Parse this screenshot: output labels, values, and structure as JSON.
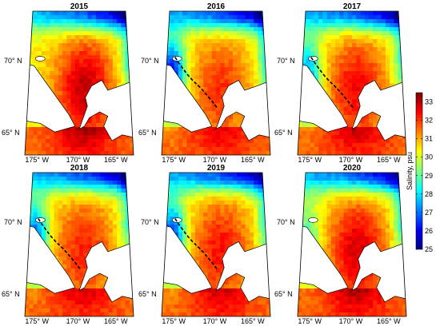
{
  "panels": [
    {
      "year": "2015",
      "has_front": false,
      "low_west": 0.0,
      "blob_strength": 0.9
    },
    {
      "year": "2016",
      "has_front": true,
      "low_west": 0.9,
      "blob_strength": 0.6
    },
    {
      "year": "2017",
      "has_front": true,
      "low_west": 0.6,
      "blob_strength": 0.75
    },
    {
      "year": "2018",
      "has_front": true,
      "low_west": 0.7,
      "blob_strength": 0.65
    },
    {
      "year": "2019",
      "has_front": true,
      "low_west": 0.8,
      "blob_strength": 0.7
    },
    {
      "year": "2020",
      "has_front": false,
      "low_west": 0.3,
      "blob_strength": 0.85
    }
  ],
  "lat_labels": {
    "north": "70° N",
    "south": "65° N"
  },
  "lon_labels": [
    "175° W",
    "170° W",
    "165° W"
  ],
  "colorbar": {
    "title": "Salinity, psu",
    "ticks": [
      "25",
      "26",
      "27",
      "28",
      "29",
      "30",
      "31",
      "32",
      "33"
    ],
    "min": 25,
    "max": 33.5,
    "colors": [
      "#00007f",
      "#0000ff",
      "#007fff",
      "#00ffff",
      "#7fff7f",
      "#ffff00",
      "#ff7f00",
      "#ff0000",
      "#7f0000"
    ]
  },
  "colors": {
    "land": "#ffffff",
    "coast": "#000000",
    "front": "#000000"
  }
}
